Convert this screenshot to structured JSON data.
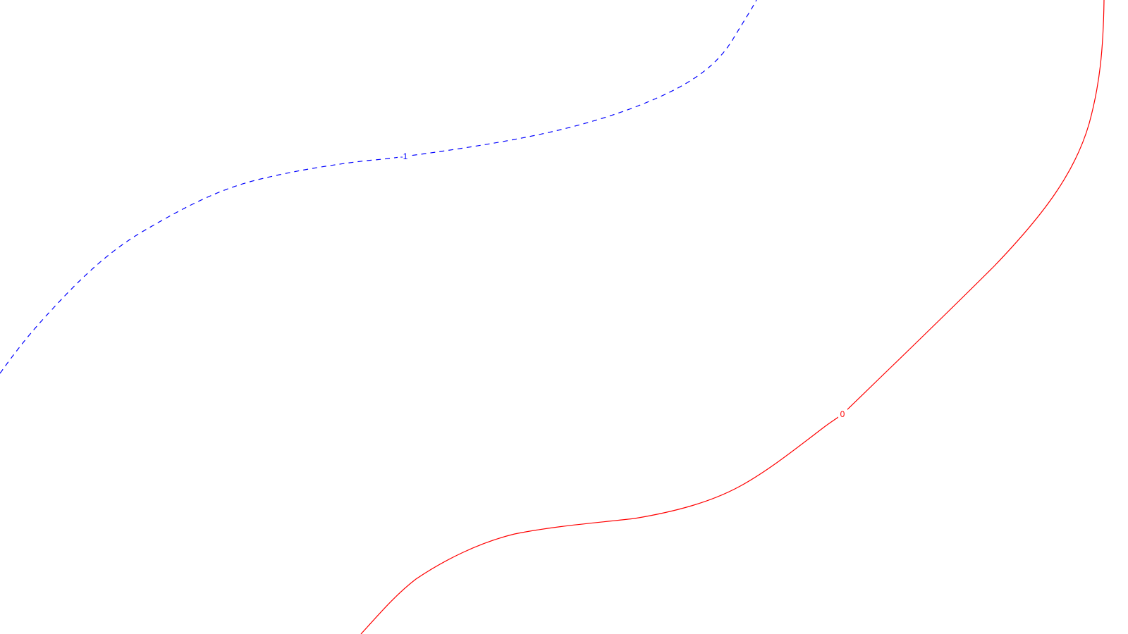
{
  "background": "#ffffff",
  "contours": [
    {
      "id": "contour-minus-1",
      "label": "-1",
      "color": "#0000ff",
      "style": "dashed"
    },
    {
      "id": "contour-zero",
      "label": "0",
      "color": "#ff0000",
      "style": "solid"
    }
  ]
}
